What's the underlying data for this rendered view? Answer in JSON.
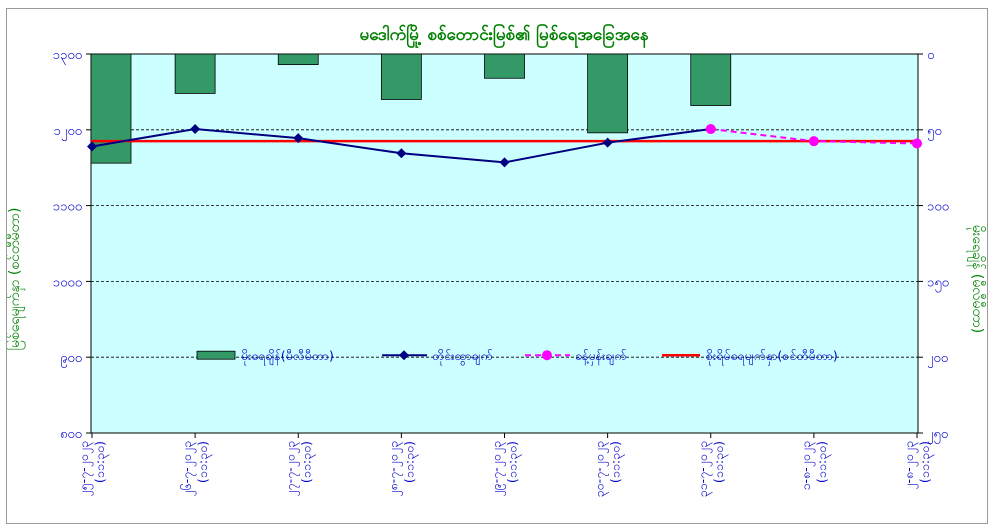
{
  "chart_data": {
    "type": "bar+line",
    "title": "မဒေါက်မြို့ စစ်တောင်းမြစ်၏ မြစ်ရေအခြေအနေ",
    "ylabel_left": "မြစ်ရေမျက်နှာ (စင်တီမီတာ)",
    "ylabel_right": "မိုးရေချိန် (မီလီမီတာ)",
    "y_left_ticks": [
      "၁၃၀၀",
      "၁၂၀၀",
      "၁၁၀၀",
      "၁၀၀၀",
      "၉၀၀",
      "၈၀၀"
    ],
    "y_left_range": [
      800,
      1300
    ],
    "y_right_ticks": [
      "၀",
      "၅၀",
      "၁၀၀",
      "၁၅၀",
      "၂၀၀",
      "၂၅၀"
    ],
    "y_right_range": [
      0,
      250
    ],
    "categories": [
      "၂၅-၇-၂၀၂၃ (၁၁:၃၀)",
      "၂၆-၇-၂၀၂၃ (၁၁:၃၀)",
      "၂၇-၇-၂၀၂၃ (၁၁:၃၀)",
      "၂၈-၇-၂၀၂၃ (၁၁:၃၀)",
      "၂၉-၇-၂၀၂၃ (၁၁:၃၀)",
      "၃၀-၇-၂၀၂၃ (၁၁:၃၀)",
      "၃၁-၇-၂၀၂၃ (၁၁:၃၀)",
      "၁-၈-၂၀၂၃ (၁၁:၃၀)",
      "၂-၈-၂၀၂၃ (၁၁:၃၀)"
    ],
    "series": [
      {
        "name": "မိုးရေချိန်(မီလီမီတာ)",
        "type": "bar",
        "axis": "right",
        "color": "#339966",
        "values": [
          72,
          26,
          7,
          30,
          16,
          52,
          34,
          null,
          null
        ]
      },
      {
        "name": "တိုင်းထွာချက်",
        "type": "line",
        "axis": "left",
        "color": "#000080",
        "values": [
          1178,
          1201,
          1189,
          1169,
          1157,
          1183,
          1201,
          null,
          null
        ]
      },
      {
        "name": "ခန့်မှန်းချက်",
        "type": "line-dashed",
        "axis": "left",
        "color": "#ff00ff",
        "values": [
          null,
          null,
          null,
          null,
          null,
          null,
          1201,
          1185,
          1182
        ]
      },
      {
        "name": "စိုးရိမ်ရေမျက်နှာ(စင်တီမီတာ)",
        "type": "hline",
        "axis": "left",
        "color": "#ff0000",
        "value": 1185
      }
    ],
    "grid": true,
    "legend_position": "center"
  }
}
